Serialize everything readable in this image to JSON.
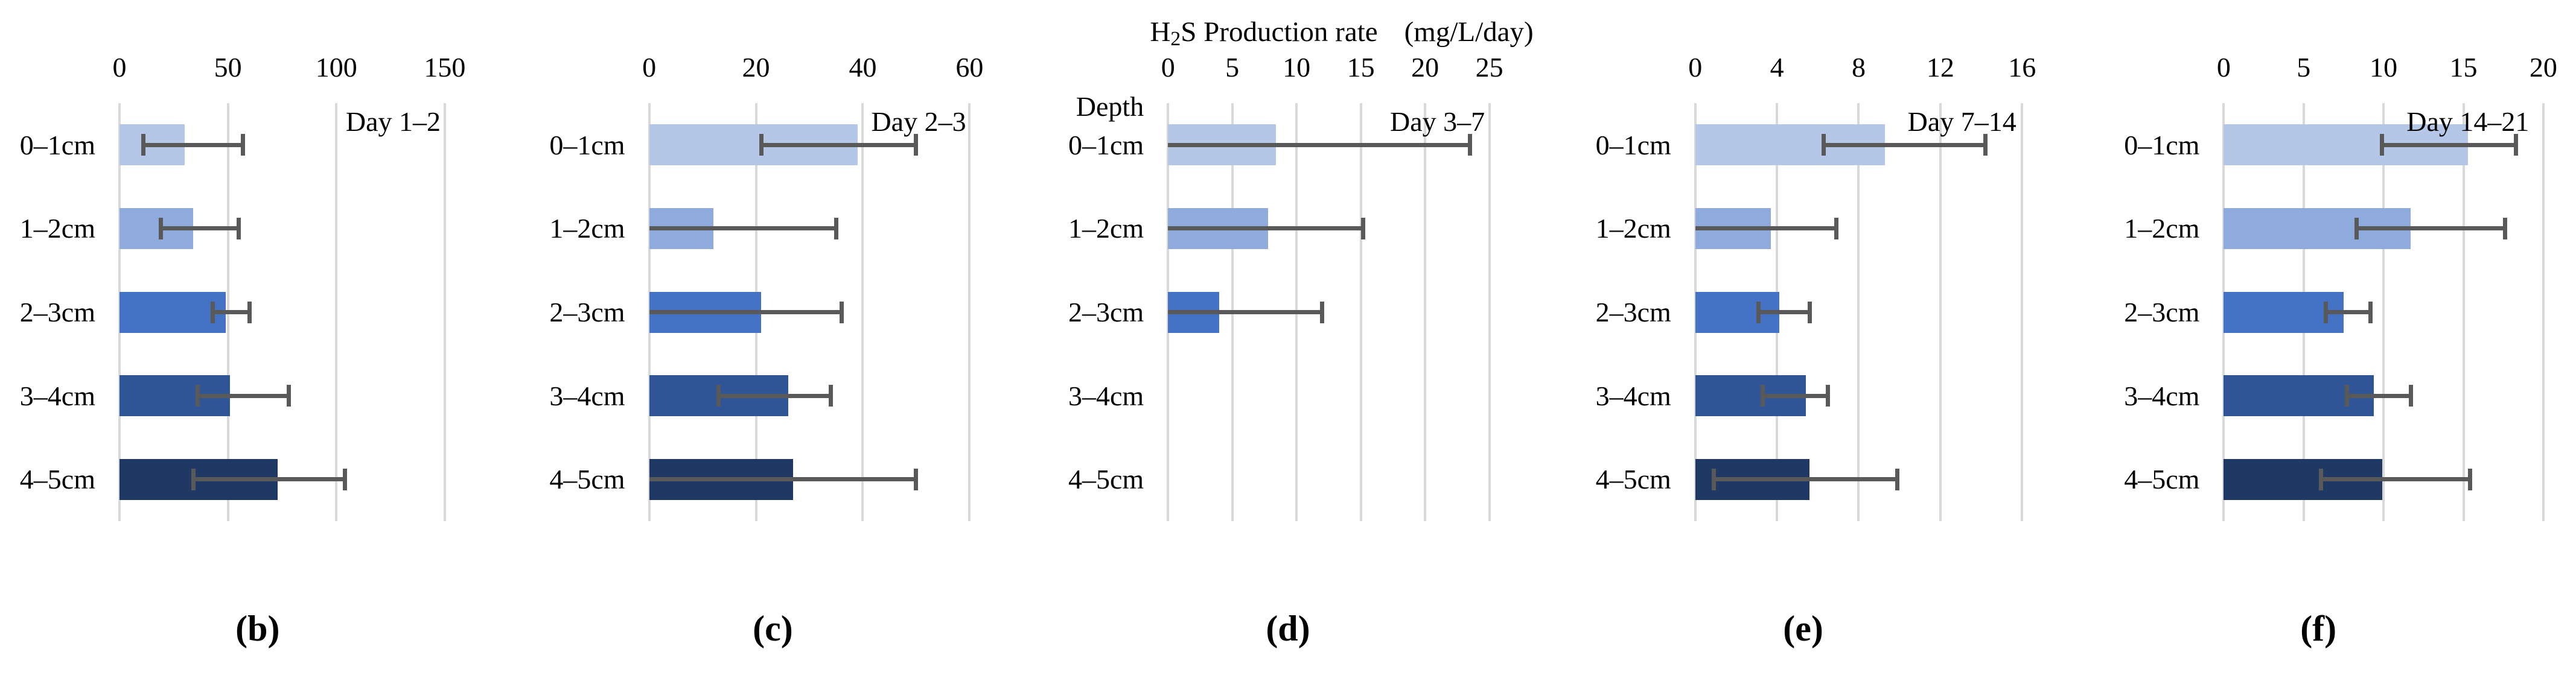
{
  "figure": {
    "title": {
      "h": "H",
      "sub": "2",
      "rest": "S Production rate",
      "units": "(mg/L/day)"
    },
    "colors": {
      "bars": [
        "#b4c7e7",
        "#8faadc",
        "#4472c4",
        "#2f5597",
        "#203864"
      ],
      "error": "#595959",
      "grid": "#d9d9d9",
      "text": "#000000"
    }
  },
  "chart_data": {
    "type": "bar",
    "orientation": "horizontal",
    "value_axis_label": "H2S Production rate (mg/L/day)",
    "category_axis_label": "Depth",
    "categories": [
      "0–1cm",
      "1–2cm",
      "2–3cm",
      "3–4cm",
      "4–5cm"
    ],
    "grid": true,
    "legend": false,
    "panels": [
      {
        "id": "b",
        "letter": "(b)",
        "day_label": "Day 1–2",
        "ticks": [
          0,
          50,
          100,
          150
        ],
        "xmax": 162,
        "rows": [
          {
            "depth": "0–1cm",
            "value": 30,
            "err_lo": 11,
            "err_hi": 57
          },
          {
            "depth": "1–2cm",
            "value": 34,
            "err_lo": 19,
            "err_hi": 55
          },
          {
            "depth": "2–3cm",
            "value": 49,
            "err_lo": 43,
            "err_hi": 60
          },
          {
            "depth": "3–4cm",
            "value": 51,
            "err_lo": 36,
            "err_hi": 78
          },
          {
            "depth": "4–5cm",
            "value": 73,
            "err_lo": 34,
            "err_hi": 104
          }
        ]
      },
      {
        "id": "c",
        "letter": "(c)",
        "day_label": "Day 2–3",
        "ticks": [
          0,
          20,
          40,
          60
        ],
        "xmax": 65,
        "rows": [
          {
            "depth": "0–1cm",
            "value": 39,
            "err_lo": 21,
            "err_hi": 50
          },
          {
            "depth": "1–2cm",
            "value": 12,
            "err_lo": 0,
            "err_hi": 35
          },
          {
            "depth": "2–3cm",
            "value": 21,
            "err_lo": 0,
            "err_hi": 36
          },
          {
            "depth": "3–4cm",
            "value": 26,
            "err_lo": 13,
            "err_hi": 34
          },
          {
            "depth": "4–5cm",
            "value": 27,
            "err_lo": 0,
            "err_hi": 50
          }
        ]
      },
      {
        "id": "d",
        "letter": "(d)",
        "day_label": "Day 3–7",
        "depth_header": "Depth",
        "has_title": true,
        "ticks": [
          0,
          5,
          10,
          15,
          20,
          25
        ],
        "xmax": 27,
        "rows": [
          {
            "depth": "0–1cm",
            "value": 8.4,
            "err_lo": 0,
            "err_hi": 23.5
          },
          {
            "depth": "1–2cm",
            "value": 7.8,
            "err_lo": 0,
            "err_hi": 15.2
          },
          {
            "depth": "2–3cm",
            "value": 4.0,
            "err_lo": 0,
            "err_hi": 12.0
          },
          {
            "depth": "3–4cm",
            "value": 0,
            "err_lo": null,
            "err_hi": null
          },
          {
            "depth": "4–5cm",
            "value": 0,
            "err_lo": null,
            "err_hi": null
          }
        ]
      },
      {
        "id": "e",
        "letter": "(e)",
        "day_label": "Day 7–14",
        "ticks": [
          0,
          4,
          8,
          12,
          16
        ],
        "xmax": 17.2,
        "rows": [
          {
            "depth": "0–1cm",
            "value": 9.3,
            "err_lo": 6.3,
            "err_hi": 14.2
          },
          {
            "depth": "1–2cm",
            "value": 3.7,
            "err_lo": 0,
            "err_hi": 6.9
          },
          {
            "depth": "2–3cm",
            "value": 4.1,
            "err_lo": 3.1,
            "err_hi": 5.6
          },
          {
            "depth": "3–4cm",
            "value": 5.4,
            "err_lo": 3.3,
            "err_hi": 6.5
          },
          {
            "depth": "4–5cm",
            "value": 5.6,
            "err_lo": 0.9,
            "err_hi": 9.9
          }
        ]
      },
      {
        "id": "f",
        "letter": "(f)",
        "day_label": "Day 14–21",
        "ticks": [
          0,
          5,
          10,
          15,
          20
        ],
        "xmax": 21,
        "rows": [
          {
            "depth": "0–1cm",
            "value": 15.3,
            "err_lo": 9.9,
            "err_hi": 18.3
          },
          {
            "depth": "1–2cm",
            "value": 11.7,
            "err_lo": 8.3,
            "err_hi": 17.6
          },
          {
            "depth": "2–3cm",
            "value": 7.5,
            "err_lo": 6.4,
            "err_hi": 9.2
          },
          {
            "depth": "3–4cm",
            "value": 9.4,
            "err_lo": 7.7,
            "err_hi": 11.7
          },
          {
            "depth": "4–5cm",
            "value": 9.9,
            "err_lo": 6.1,
            "err_hi": 15.4
          }
        ]
      }
    ]
  }
}
